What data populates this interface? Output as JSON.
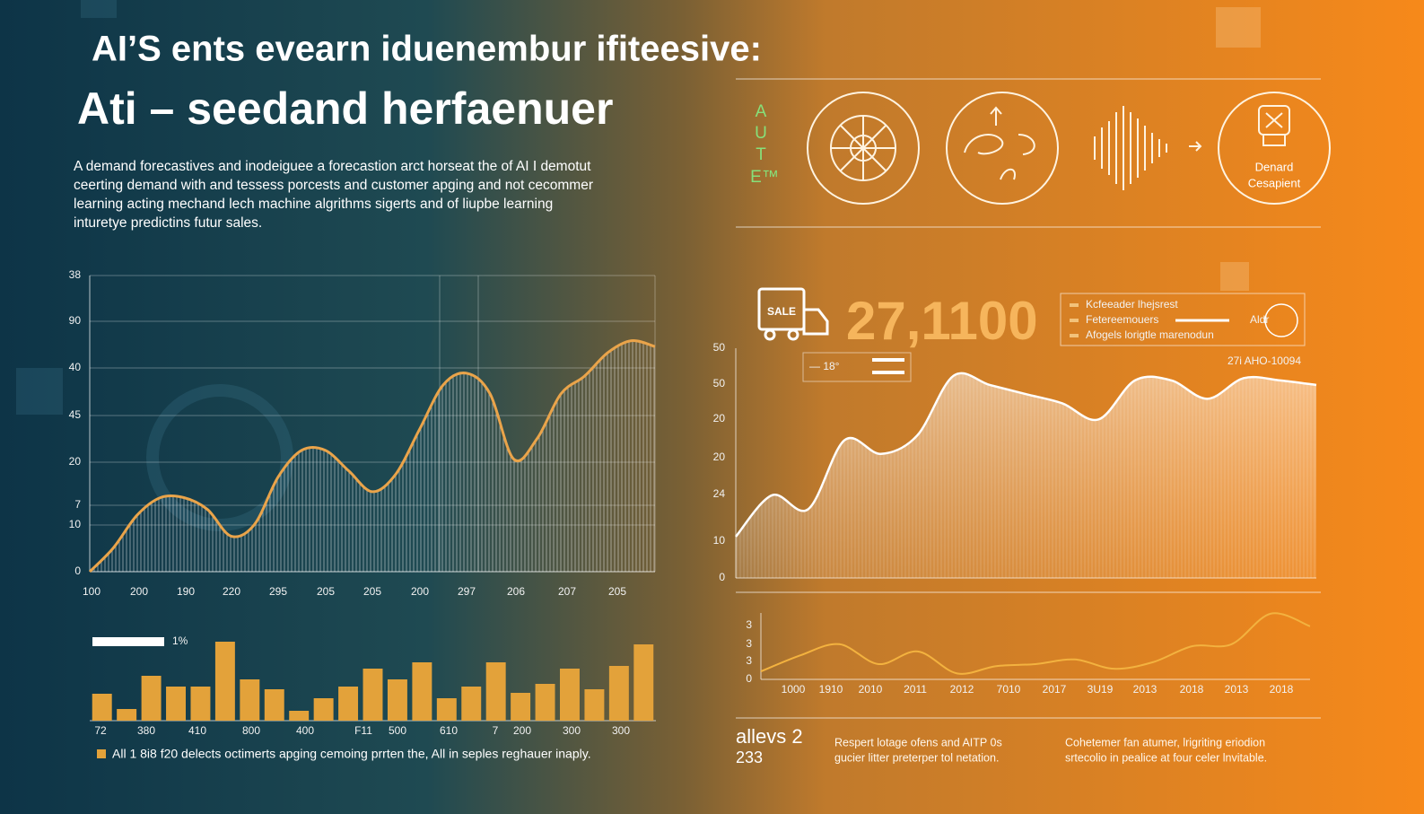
{
  "header": {
    "title": "AI’S ents evearn iduenembur ifiteesive:",
    "subtitle": "Ati – seedand herfaenuer",
    "description": [
      "A demand forecastives and inodeiguee a forecastion arct horseat the of AI I demotut",
      "ceerting demand with and tessess porcests and customer apging and not cecommer",
      "learning acting mechand lech machine algrithms sigerts and of liupbe learning",
      "inturetye predictins futur sales."
    ]
  },
  "icons": {
    "letters": [
      "A",
      "U",
      "T",
      "E™"
    ],
    "caption": [
      "Denard",
      "Cesapient"
    ],
    "sign": "SALE"
  },
  "chart_data": [
    {
      "type": "area-line",
      "color": "#eaa44a",
      "y_labels": [
        "38",
        "90",
        "40",
        "45",
        "20",
        "7",
        "10",
        "0"
      ],
      "x_labels": [
        "100",
        "200",
        "190",
        "220",
        "295",
        "205",
        "205",
        "200",
        "297",
        "206",
        "207",
        "205"
      ],
      "ylim": [
        0,
        100
      ],
      "values": [
        0,
        8,
        19,
        25,
        25,
        21,
        12,
        16,
        32,
        41,
        41,
        34,
        27,
        33,
        48,
        63,
        67,
        60,
        38,
        45,
        60,
        66,
        74,
        78,
        76
      ]
    },
    {
      "type": "bar",
      "color": "#e3a23a",
      "legend": "1%",
      "x_labels": [
        "72",
        "380",
        "410",
        "800",
        "400",
        "F11",
        "500",
        "610",
        "7",
        "200",
        "300",
        "300"
      ],
      "ylim": [
        0,
        100
      ],
      "values": [
        30,
        13,
        50,
        38,
        38,
        88,
        46,
        35,
        11,
        25,
        38,
        58,
        46,
        65,
        25,
        38,
        65,
        31,
        41,
        58,
        35,
        61,
        85
      ],
      "caption": "All 1 8i8 f20 delects octimerts apging cemoing prrten the, All in seples reghauer inaply."
    },
    {
      "type": "area",
      "color": "#ffffff",
      "headline": "27,1100",
      "legend": [
        "Kcfeeader lhejsrest",
        "Fetereemouers",
        "Aldr",
        "Afogels lorigtle marenodun"
      ],
      "badge": "— 18°",
      "note": "27i AHO-10094",
      "y_labels": [
        "50",
        "50",
        "20",
        "20",
        "24",
        "10",
        "0"
      ],
      "ylim": [
        0,
        100
      ],
      "values": [
        18,
        36,
        30,
        60,
        54,
        62,
        88,
        84,
        80,
        76,
        69,
        86,
        86,
        78,
        87,
        86,
        84
      ]
    },
    {
      "type": "line",
      "color": "#f3b23f",
      "y_labels": [
        "3",
        "3",
        "3",
        "0"
      ],
      "x_labels": [
        "1000",
        "1910",
        "2010",
        "2011",
        "2012",
        "7010",
        "2017",
        "3U19",
        "2013",
        "2018",
        "2013",
        "2018"
      ],
      "ylim": [
        0,
        100
      ],
      "values": [
        12,
        36,
        53,
        23,
        42,
        9,
        20,
        23,
        30,
        16,
        26,
        50,
        53,
        99,
        80
      ]
    }
  ],
  "footer": {
    "stat": "allevs 2",
    "stat_sub": "233",
    "note_a": [
      "Respert lotage ofens and AITP 0s",
      "gucier litter preterper tol netation."
    ],
    "note_b": [
      "Cohetemer fan atumer, lrigriting eriodion",
      "srtecolio in pealice at four celer lnvitable."
    ]
  }
}
